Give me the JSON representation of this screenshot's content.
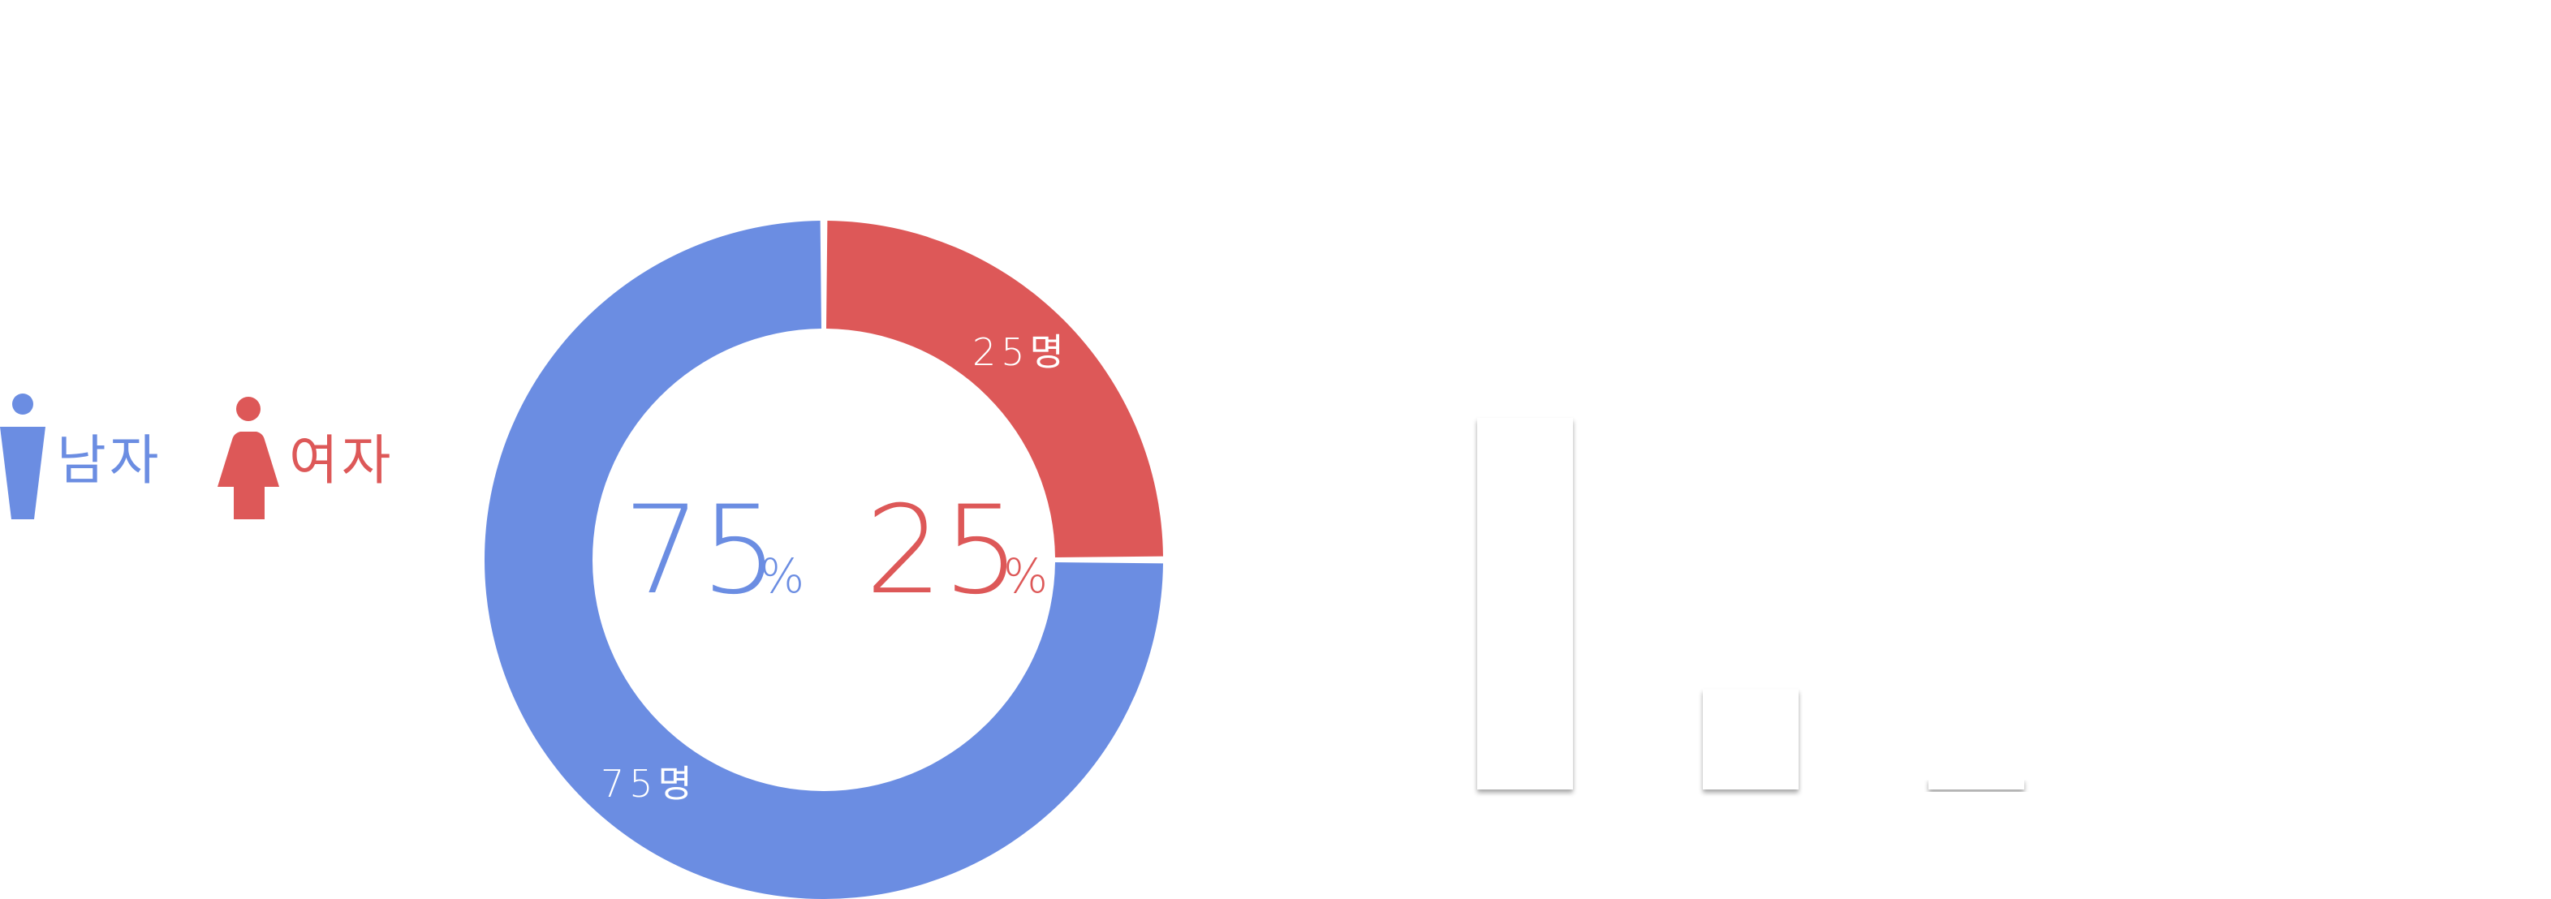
{
  "legend": {
    "male_label": "남자",
    "female_label": "여자",
    "male_icon": "male-person-icon",
    "female_icon": "female-person-icon"
  },
  "center": {
    "male_percent": "75",
    "female_percent": "25",
    "percent_sign": "%"
  },
  "chart_data": [
    {
      "type": "pie",
      "variant": "donut",
      "categories": [
        "남자",
        "여자"
      ],
      "values": [
        75,
        25
      ],
      "data_labels": [
        "75명",
        "25명"
      ],
      "colors": [
        "#6b8de2",
        "#dd5858"
      ],
      "start_angle": "12 o'clock, counter-clockwise for 남자",
      "legend": "left"
    },
    {
      "type": "bar",
      "categories": [
        "",
        "",
        ""
      ],
      "values": [
        100,
        27,
        3
      ],
      "bar_color": "#ffffff",
      "shadow": true,
      "grid": false
    }
  ]
}
